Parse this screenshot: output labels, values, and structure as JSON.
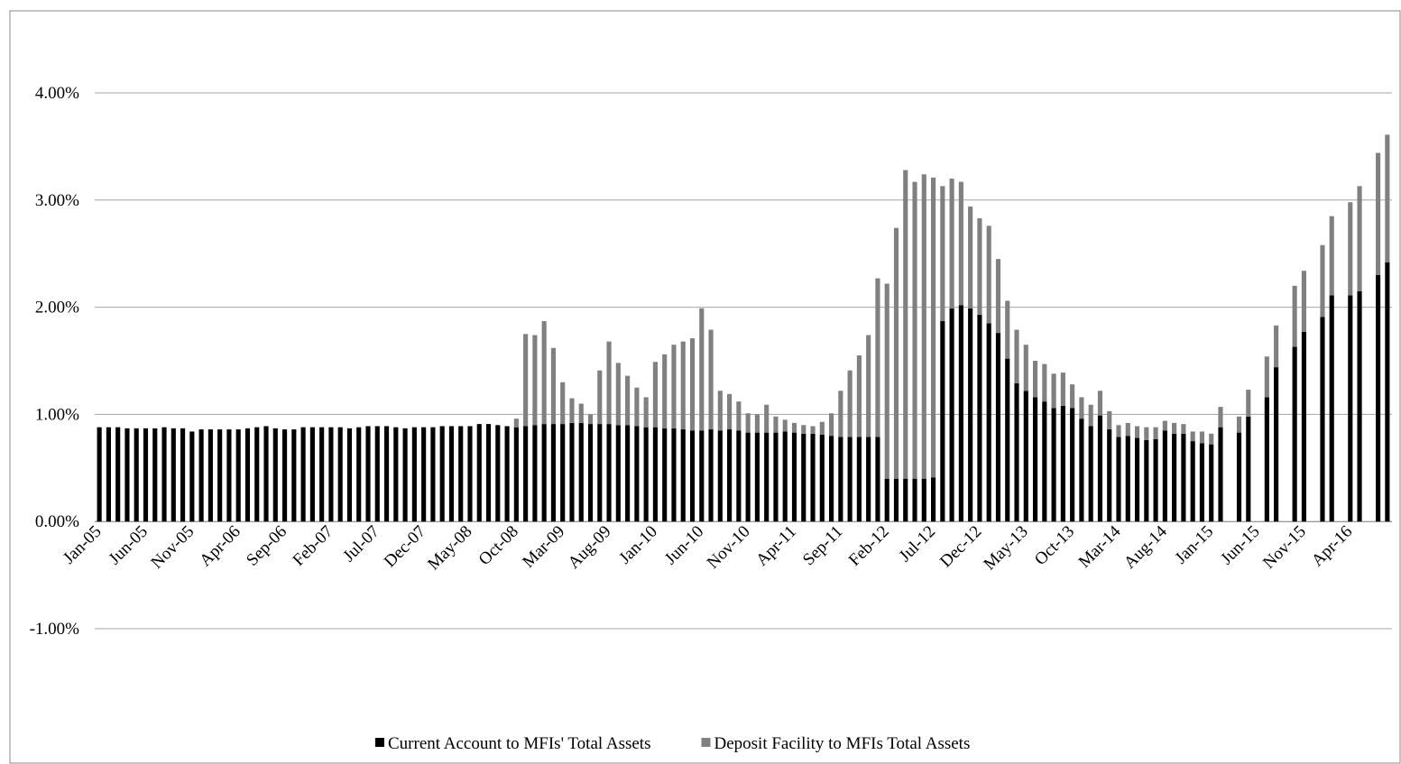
{
  "chart_data": {
    "type": "stacked-bar",
    "categories": [
      "Jan-05",
      null,
      null,
      null,
      null,
      "Jun-05",
      null,
      null,
      null,
      null,
      "Nov-05",
      null,
      null,
      null,
      null,
      "Apr-06",
      null,
      null,
      null,
      null,
      "Sep-06",
      null,
      null,
      null,
      null,
      "Feb-07",
      null,
      null,
      null,
      null,
      "Jul-07",
      null,
      null,
      null,
      null,
      "Dec-07",
      null,
      null,
      null,
      null,
      "May-08",
      null,
      null,
      null,
      null,
      "Oct-08",
      null,
      null,
      null,
      null,
      "Mar-09",
      null,
      null,
      null,
      null,
      "Aug-09",
      null,
      null,
      null,
      null,
      "Jan-10",
      null,
      null,
      null,
      null,
      "Jun-10",
      null,
      null,
      null,
      null,
      "Nov-10",
      null,
      null,
      null,
      null,
      "Apr-11",
      null,
      null,
      null,
      null,
      "Sep-11",
      null,
      null,
      null,
      null,
      "Feb-12",
      null,
      null,
      null,
      null,
      "Jul-12",
      null,
      null,
      null,
      null,
      "Dec-12",
      null,
      null,
      null,
      null,
      "May-13",
      null,
      null,
      null,
      null,
      "Oct-13",
      null,
      null,
      null,
      null,
      "Mar-14",
      null,
      null,
      null,
      null,
      "Aug-14",
      null,
      null,
      null,
      null,
      "Jan-15",
      null,
      null,
      null,
      null,
      "Jun-15",
      null,
      null,
      null,
      null,
      "Nov-15",
      null,
      null,
      null,
      null,
      "Apr-16",
      null,
      null,
      null,
      null
    ],
    "series": [
      {
        "name": "Current Account to MFIs' Total Assets",
        "color": "#000000",
        "values": [
          0.88,
          0.88,
          0.88,
          0.87,
          0.87,
          0.87,
          0.87,
          0.88,
          0.87,
          0.87,
          0.84,
          0.86,
          0.86,
          0.86,
          0.86,
          0.86,
          0.87,
          0.88,
          0.89,
          0.87,
          0.86,
          0.86,
          0.88,
          0.88,
          0.88,
          0.88,
          0.88,
          0.87,
          0.88,
          0.89,
          0.89,
          0.89,
          0.88,
          0.87,
          0.88,
          0.88,
          0.88,
          0.89,
          0.89,
          0.89,
          0.89,
          0.91,
          0.91,
          0.9,
          0.89,
          0.88,
          0.89,
          0.9,
          0.91,
          0.91,
          0.91,
          0.92,
          0.92,
          0.91,
          0.91,
          0.91,
          0.9,
          0.9,
          0.89,
          0.88,
          0.88,
          0.87,
          0.87,
          0.86,
          0.85,
          0.85,
          0.86,
          0.85,
          0.86,
          0.85,
          0.83,
          0.83,
          0.83,
          0.83,
          0.84,
          0.83,
          0.82,
          0.82,
          0.81,
          0.8,
          0.79,
          0.79,
          0.79,
          0.79,
          0.79,
          0.4,
          0.4,
          0.4,
          0.4,
          0.4,
          0.41,
          1.87,
          1.99,
          2.02,
          1.99,
          1.93,
          1.85,
          1.76,
          1.52,
          1.29,
          1.22,
          1.16,
          1.12,
          1.06,
          1.08,
          1.06,
          0.96,
          0.89,
          0.99,
          0.86,
          0.79,
          0.8,
          0.78,
          0.76,
          0.77,
          0.85,
          0.82,
          0.82,
          0.75,
          0.73,
          0.72,
          0.88,
          null,
          0.83,
          0.98,
          null,
          1.16,
          1.44,
          null,
          1.63,
          1.77,
          null,
          1.91,
          2.11,
          null,
          2.11,
          2.15,
          null,
          2.3,
          2.42
        ]
      },
      {
        "name": "Deposit Facility to MFIs Total Assets",
        "color": "#808080",
        "values": [
          0,
          0,
          0,
          0,
          0,
          0,
          0,
          0,
          0,
          0,
          0,
          0,
          0,
          0,
          0,
          0,
          0,
          0,
          0,
          0,
          0,
          0,
          0,
          0,
          0,
          0,
          0,
          0,
          0,
          0,
          0,
          0,
          0,
          0,
          0,
          0,
          0,
          0,
          0,
          0,
          0,
          0,
          0,
          0,
          0,
          0.08,
          0.86,
          0.84,
          0.96,
          0.71,
          0.39,
          0.23,
          0.18,
          0.09,
          0.5,
          0.77,
          0.58,
          0.46,
          0.36,
          0.28,
          0.61,
          0.69,
          0.78,
          0.82,
          0.86,
          1.14,
          0.93,
          0.37,
          0.33,
          0.27,
          0.18,
          0.17,
          0.26,
          0.15,
          0.11,
          0.09,
          0.08,
          0.07,
          0.12,
          0.21,
          0.43,
          0.62,
          0.76,
          0.95,
          1.48,
          1.82,
          2.34,
          2.88,
          2.77,
          2.84,
          2.8,
          1.26,
          1.21,
          1.15,
          0.95,
          0.9,
          0.91,
          0.69,
          0.54,
          0.5,
          0.43,
          0.34,
          0.35,
          0.32,
          0.31,
          0.22,
          0.2,
          0.2,
          0.23,
          0.17,
          0.11,
          0.12,
          0.11,
          0.12,
          0.11,
          0.09,
          0.1,
          0.09,
          0.09,
          0.11,
          0.1,
          0.19,
          null,
          0.15,
          0.25,
          null,
          0.38,
          0.39,
          null,
          0.57,
          0.57,
          null,
          0.67,
          0.74,
          null,
          0.87,
          0.98,
          null,
          1.14,
          1.19
        ]
      }
    ],
    "ylim": [
      -1,
      4.5
    ],
    "yticks": [
      {
        "value": -1,
        "label": "-1.00%"
      },
      {
        "value": 0,
        "label": "0.00%"
      },
      {
        "value": 1,
        "label": "1.00%"
      },
      {
        "value": 2,
        "label": "2.00%"
      },
      {
        "value": 3,
        "label": "3.00%"
      },
      {
        "value": 4,
        "label": "4.00%"
      }
    ],
    "grid": true,
    "legend": "bottom"
  }
}
